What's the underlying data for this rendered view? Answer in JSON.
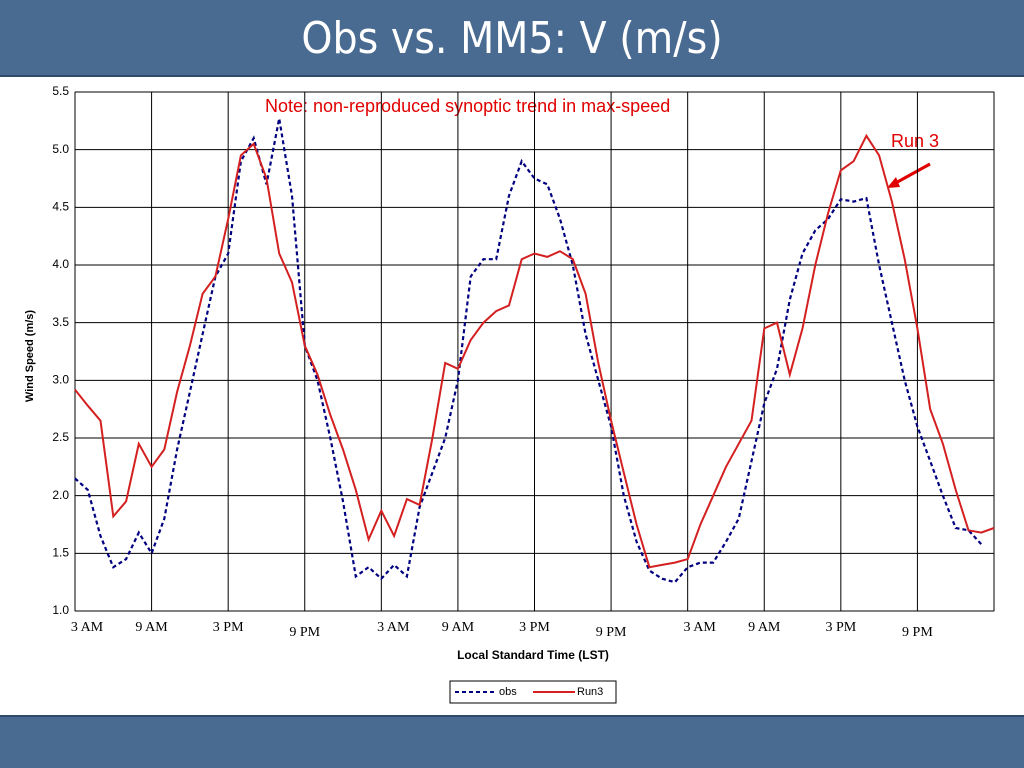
{
  "chart_data": {
    "type": "line",
    "title": "Obs vs. MM5: V (m/s)",
    "xlabel": "Local Standard Time (LST)",
    "ylabel": "Wind Speed (m/s)",
    "annotations": [
      "Note: non-reproduced synoptic trend in max-speed",
      "Run 3"
    ],
    "x": [
      0,
      1,
      2,
      3,
      4,
      5,
      6,
      7,
      8,
      9,
      10,
      11,
      12,
      13,
      14,
      15,
      16,
      17,
      18,
      19,
      20,
      21,
      22,
      23,
      24,
      25,
      26,
      27,
      28,
      29,
      30,
      31,
      32,
      33,
      34,
      35,
      36,
      37,
      38,
      39,
      40,
      41,
      42,
      43,
      44,
      45,
      46,
      47,
      48,
      49,
      50,
      51,
      52,
      53,
      54,
      55,
      56,
      57,
      58,
      59,
      60,
      61,
      62,
      63,
      64,
      65,
      66,
      67,
      68,
      69,
      70,
      71,
      72
    ],
    "xlim": [
      0,
      72
    ],
    "xticks": [
      {
        "value": 0,
        "label": "3 AM"
      },
      {
        "value": 6,
        "label": "9 AM"
      },
      {
        "value": 12,
        "label": "3 PM"
      },
      {
        "value": 18,
        "label": "9 PM"
      },
      {
        "value": 24,
        "label": "3 AM"
      },
      {
        "value": 30,
        "label": "9 AM"
      },
      {
        "value": 36,
        "label": "3 PM"
      },
      {
        "value": 42,
        "label": "9 PM"
      },
      {
        "value": 48,
        "label": "3 AM"
      },
      {
        "value": 54,
        "label": "9 AM"
      },
      {
        "value": 60,
        "label": "3 PM"
      },
      {
        "value": 66,
        "label": "9 PM"
      }
    ],
    "ylim": [
      1,
      5.5
    ],
    "yticks": [
      {
        "value": 1,
        "label": "1.0"
      },
      1.5,
      {
        "value": 2,
        "label": "2.0"
      },
      2.5,
      {
        "value": 3,
        "label": "3.0"
      },
      3.5,
      {
        "value": 4,
        "label": "4.0"
      },
      4.5,
      {
        "value": 5,
        "label": "5.0"
      },
      5.5
    ],
    "grid": true,
    "legend": "bottom",
    "series": [
      {
        "name": "obs",
        "color": "#000080",
        "dashed": true,
        "values": [
          2.15,
          2.05,
          1.65,
          1.38,
          1.45,
          1.68,
          1.5,
          1.8,
          2.4,
          2.9,
          3.4,
          3.9,
          4.1,
          4.9,
          5.1,
          4.7,
          5.27,
          4.6,
          3.3,
          3.0,
          2.5,
          1.95,
          1.3,
          1.38,
          1.28,
          1.4,
          1.3,
          1.9,
          2.2,
          2.5,
          3.0,
          3.9,
          4.05,
          4.05,
          4.6,
          4.9,
          4.75,
          4.7,
          4.4,
          4.0,
          3.4,
          3.0,
          2.6,
          2.0,
          1.6,
          1.35,
          1.28,
          1.25,
          1.38,
          1.42,
          1.42,
          1.6,
          1.8,
          2.3,
          2.8,
          3.1,
          3.7,
          4.1,
          4.3,
          4.4,
          4.57,
          4.55,
          4.58,
          4.0,
          3.5,
          3.0,
          2.6,
          2.3,
          2.0,
          1.72,
          1.7,
          1.58,
          null
        ]
      },
      {
        "name": "Run3",
        "color": "#d42020",
        "dashed": false,
        "values": [
          2.92,
          2.78,
          2.65,
          1.82,
          1.95,
          2.45,
          2.25,
          2.4,
          2.9,
          3.3,
          3.75,
          3.9,
          4.4,
          4.95,
          5.05,
          4.75,
          4.1,
          3.85,
          3.3,
          3.05,
          2.7,
          2.4,
          2.05,
          1.62,
          1.87,
          1.65,
          1.97,
          1.92,
          2.5,
          3.15,
          3.1,
          3.35,
          3.5,
          3.6,
          3.65,
          4.05,
          4.1,
          4.07,
          4.12,
          4.05,
          3.75,
          3.15,
          2.65,
          2.2,
          1.75,
          1.38,
          1.4,
          1.42,
          1.45,
          1.75,
          2.0,
          2.25,
          2.45,
          2.65,
          3.45,
          3.5,
          3.05,
          3.45,
          4.0,
          4.45,
          4.82,
          4.9,
          5.12,
          4.95,
          4.55,
          4.05,
          3.45,
          2.75,
          2.45,
          2.05,
          1.7,
          1.68,
          1.72
        ]
      }
    ]
  }
}
